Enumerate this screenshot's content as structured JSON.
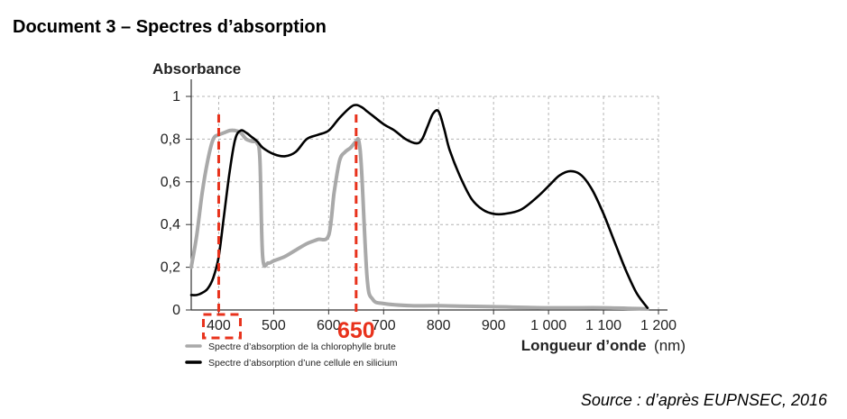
{
  "header": {
    "title": "Document 3 – Spectres d’absorption"
  },
  "source": "Source : d’après EUPNSEC, 2016",
  "colors": {
    "chlorophyll": "#a9a9a9",
    "silicon": "#000000",
    "annotation": "#e8321c",
    "grid": "#b4b4b4"
  },
  "chart_data": {
    "type": "line",
    "title": "",
    "xlabel": "Longueur d’onde",
    "xunit": "(nm)",
    "ylabel": "Absorbance",
    "xlim": [
      350,
      1200
    ],
    "ylim": [
      0,
      1
    ],
    "x_ticks": [
      {
        "value": 400,
        "label": "400"
      },
      {
        "value": 500,
        "label": "500"
      },
      {
        "value": 600,
        "label": "600"
      },
      {
        "value": 700,
        "label": "700"
      },
      {
        "value": 800,
        "label": "800"
      },
      {
        "value": 900,
        "label": "900"
      },
      {
        "value": 1000,
        "label": "1 000"
      },
      {
        "value": 1100,
        "label": "1 100"
      },
      {
        "value": 1200,
        "label": "1 200"
      }
    ],
    "y_ticks": [
      {
        "value": 0,
        "label": "0"
      },
      {
        "value": 0.2,
        "label": "0,2"
      },
      {
        "value": 0.4,
        "label": "0,4"
      },
      {
        "value": 0.6,
        "label": "0,6"
      },
      {
        "value": 0.8,
        "label": "0,8"
      },
      {
        "value": 1,
        "label": "1"
      }
    ],
    "grid": true,
    "legend_position": "bottom-left",
    "series": [
      {
        "name": "Spectre d’absorption de la chlorophylle brute",
        "color": "#a9a9a9",
        "x": [
          350,
          360,
          370,
          380,
          390,
          400,
          410,
          420,
          430,
          440,
          450,
          460,
          470,
          475,
          480,
          490,
          500,
          520,
          540,
          560,
          580,
          600,
          610,
          620,
          630,
          640,
          650,
          655,
          660,
          670,
          680,
          700,
          750,
          800,
          900,
          1000,
          1100,
          1180
        ],
        "y": [
          0.2,
          0.35,
          0.55,
          0.7,
          0.8,
          0.82,
          0.83,
          0.84,
          0.84,
          0.83,
          0.8,
          0.79,
          0.78,
          0.7,
          0.25,
          0.22,
          0.23,
          0.25,
          0.28,
          0.31,
          0.33,
          0.35,
          0.55,
          0.7,
          0.74,
          0.76,
          0.79,
          0.79,
          0.65,
          0.15,
          0.05,
          0.03,
          0.02,
          0.02,
          0.015,
          0.01,
          0.01,
          0.005
        ]
      },
      {
        "name": "Spectre d’absorption d’une cellule en silicium",
        "color": "#000000",
        "x": [
          350,
          360,
          370,
          380,
          390,
          400,
          410,
          420,
          430,
          440,
          450,
          460,
          470,
          480,
          500,
          520,
          540,
          560,
          580,
          600,
          620,
          640,
          650,
          660,
          670,
          680,
          700,
          720,
          740,
          760,
          770,
          780,
          790,
          800,
          810,
          820,
          840,
          860,
          880,
          900,
          920,
          950,
          980,
          1000,
          1020,
          1040,
          1060,
          1080,
          1100,
          1120,
          1140,
          1160,
          1180
        ],
        "y": [
          0.07,
          0.07,
          0.08,
          0.1,
          0.15,
          0.25,
          0.45,
          0.65,
          0.8,
          0.84,
          0.83,
          0.81,
          0.79,
          0.76,
          0.73,
          0.72,
          0.74,
          0.8,
          0.82,
          0.84,
          0.9,
          0.95,
          0.96,
          0.95,
          0.93,
          0.91,
          0.87,
          0.84,
          0.8,
          0.78,
          0.8,
          0.86,
          0.92,
          0.93,
          0.85,
          0.75,
          0.62,
          0.52,
          0.47,
          0.45,
          0.45,
          0.47,
          0.53,
          0.58,
          0.63,
          0.65,
          0.63,
          0.56,
          0.45,
          0.32,
          0.19,
          0.08,
          0.01
        ]
      }
    ],
    "annotations": [
      {
        "label": "650",
        "x": 650,
        "kind": "dashed-vertical-line",
        "color": "#e8321c"
      },
      {
        "label": "",
        "x": 400,
        "kind": "dashed-vertical-line",
        "color": "#e8321c"
      },
      {
        "label": "",
        "x": 400,
        "kind": "dashed-box-around-tick",
        "color": "#e8321c"
      }
    ]
  }
}
